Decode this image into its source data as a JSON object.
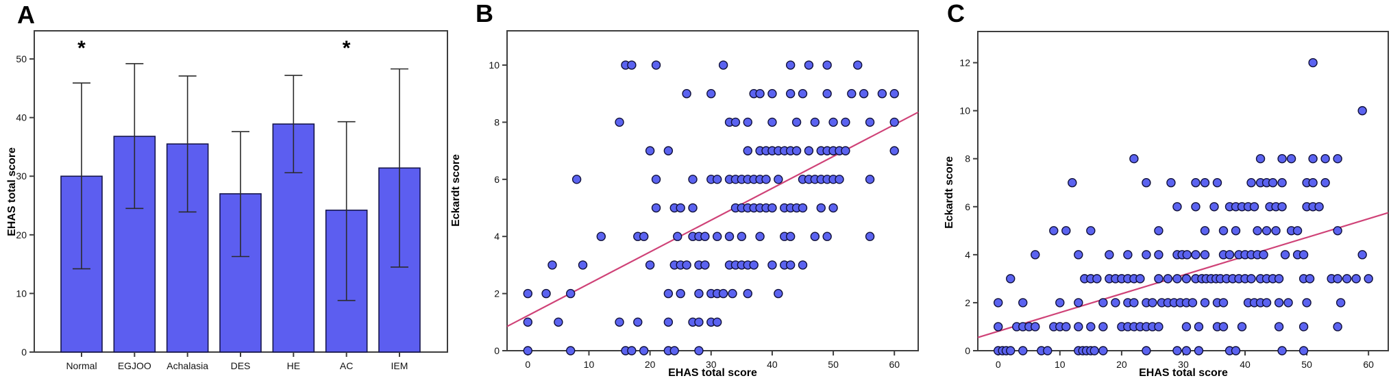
{
  "panels": {
    "a": {
      "letter": "A"
    },
    "b": {
      "letter": "B"
    },
    "c": {
      "letter": "C"
    }
  },
  "colors": {
    "bar_fill": "#5c5ef0",
    "bar_border": "#15154a",
    "point_fill": "#5b63f0",
    "point_border": "#10103a",
    "fit_line": "#cf4277",
    "frame": "#3d3d3d",
    "error_bar": "#2a2a2a",
    "tick_text": "#111111"
  },
  "chart_data": [
    {
      "type": "bar",
      "panel": "A",
      "title": "",
      "xlabel": "",
      "ylabel": "EHAS total score",
      "categories": [
        "Normal",
        "EGJOO",
        "Achalasia",
        "DES",
        "HE",
        "AC",
        "IEM"
      ],
      "values": [
        30,
        36.8,
        35.5,
        27,
        38.9,
        24.2,
        31.4
      ],
      "error_low": [
        14.2,
        24.5,
        23.9,
        16.3,
        30.6,
        8.8,
        14.5
      ],
      "error_high": [
        45.9,
        49.2,
        47.1,
        37.6,
        47.2,
        39.3,
        48.3
      ],
      "yticks": [
        0,
        10,
        20,
        30,
        40,
        50
      ],
      "ylim": [
        0,
        54.8
      ],
      "grid": false,
      "annotations": [
        {
          "category": "Normal",
          "symbol": "*"
        },
        {
          "category": "AC",
          "symbol": "*"
        }
      ]
    },
    {
      "type": "scatter",
      "panel": "B",
      "title": "",
      "xlabel": "EHAS total score",
      "ylabel": "Eckardt score",
      "xticks": [
        0,
        10,
        20,
        30,
        40,
        50,
        60
      ],
      "yticks": [
        0,
        2,
        4,
        6,
        8,
        10
      ],
      "xlim": [
        -3.4,
        63.9
      ],
      "ylim": [
        0,
        11.2
      ],
      "grid": false,
      "fit_line": {
        "x1": -3.4,
        "y1": 0.85,
        "x2": 63.9,
        "y2": 8.35
      },
      "points": [
        [
          0,
          0
        ],
        [
          7,
          0
        ],
        [
          16,
          0
        ],
        [
          17,
          0
        ],
        [
          19,
          0
        ],
        [
          23,
          0
        ],
        [
          24,
          0
        ],
        [
          28,
          0
        ],
        [
          0,
          1
        ],
        [
          5,
          1
        ],
        [
          15,
          1
        ],
        [
          18,
          1
        ],
        [
          23,
          1
        ],
        [
          27,
          1
        ],
        [
          28,
          1
        ],
        [
          30,
          1
        ],
        [
          31,
          1
        ],
        [
          0,
          2
        ],
        [
          3,
          2
        ],
        [
          7,
          2
        ],
        [
          23,
          2
        ],
        [
          25,
          2
        ],
        [
          28,
          2
        ],
        [
          30,
          2
        ],
        [
          31,
          2
        ],
        [
          32,
          2
        ],
        [
          33.5,
          2
        ],
        [
          36,
          2
        ],
        [
          41,
          2
        ],
        [
          4,
          3
        ],
        [
          9,
          3
        ],
        [
          20,
          3
        ],
        [
          24,
          3
        ],
        [
          25,
          3
        ],
        [
          26,
          3
        ],
        [
          28,
          3
        ],
        [
          29,
          3
        ],
        [
          33,
          3
        ],
        [
          34,
          3
        ],
        [
          35,
          3
        ],
        [
          36,
          3
        ],
        [
          37,
          3
        ],
        [
          40,
          3
        ],
        [
          42,
          3
        ],
        [
          43,
          3
        ],
        [
          45,
          3
        ],
        [
          12,
          4
        ],
        [
          18,
          4
        ],
        [
          19,
          4
        ],
        [
          24.5,
          4
        ],
        [
          27,
          4
        ],
        [
          28,
          4
        ],
        [
          29,
          4
        ],
        [
          31,
          4
        ],
        [
          33,
          4
        ],
        [
          35,
          4
        ],
        [
          38,
          4
        ],
        [
          42,
          4
        ],
        [
          43,
          4
        ],
        [
          47,
          4
        ],
        [
          49,
          4
        ],
        [
          56,
          4
        ],
        [
          21,
          5
        ],
        [
          24,
          5
        ],
        [
          25,
          5
        ],
        [
          27,
          5
        ],
        [
          34,
          5
        ],
        [
          35,
          5
        ],
        [
          36,
          5
        ],
        [
          37,
          5
        ],
        [
          38,
          5
        ],
        [
          39,
          5
        ],
        [
          40,
          5
        ],
        [
          42,
          5
        ],
        [
          43,
          5
        ],
        [
          44,
          5
        ],
        [
          45,
          5
        ],
        [
          48,
          5
        ],
        [
          50,
          5
        ],
        [
          8,
          6
        ],
        [
          21,
          6
        ],
        [
          27,
          6
        ],
        [
          30,
          6
        ],
        [
          31,
          6
        ],
        [
          33,
          6
        ],
        [
          34,
          6
        ],
        [
          35,
          6
        ],
        [
          36,
          6
        ],
        [
          37,
          6
        ],
        [
          38,
          6
        ],
        [
          39,
          6
        ],
        [
          41,
          6
        ],
        [
          45,
          6
        ],
        [
          46,
          6
        ],
        [
          47,
          6
        ],
        [
          48,
          6
        ],
        [
          49,
          6
        ],
        [
          50,
          6
        ],
        [
          51,
          6
        ],
        [
          56,
          6
        ],
        [
          20,
          7
        ],
        [
          23,
          7
        ],
        [
          36,
          7
        ],
        [
          38,
          7
        ],
        [
          39,
          7
        ],
        [
          40,
          7
        ],
        [
          41,
          7
        ],
        [
          42,
          7
        ],
        [
          43,
          7
        ],
        [
          44,
          7
        ],
        [
          46,
          7
        ],
        [
          48,
          7
        ],
        [
          49,
          7
        ],
        [
          50,
          7
        ],
        [
          51,
          7
        ],
        [
          52,
          7
        ],
        [
          60,
          7
        ],
        [
          15,
          8
        ],
        [
          33,
          8
        ],
        [
          34,
          8
        ],
        [
          36,
          8
        ],
        [
          40,
          8
        ],
        [
          44,
          8
        ],
        [
          47,
          8
        ],
        [
          50,
          8
        ],
        [
          52,
          8
        ],
        [
          56,
          8
        ],
        [
          60,
          8
        ],
        [
          26,
          9
        ],
        [
          30,
          9
        ],
        [
          37,
          9
        ],
        [
          38,
          9
        ],
        [
          40,
          9
        ],
        [
          43,
          9
        ],
        [
          45,
          9
        ],
        [
          49,
          9
        ],
        [
          53,
          9
        ],
        [
          55,
          9
        ],
        [
          58,
          9
        ],
        [
          60,
          9
        ],
        [
          16,
          10
        ],
        [
          17,
          10
        ],
        [
          21,
          10
        ],
        [
          32,
          10
        ],
        [
          43,
          10
        ],
        [
          46,
          10
        ],
        [
          49,
          10
        ],
        [
          54,
          10
        ]
      ]
    },
    {
      "type": "scatter",
      "panel": "C",
      "title": "",
      "xlabel": "EHAS total score",
      "ylabel": "Eckardt score",
      "xticks": [
        0,
        10,
        20,
        30,
        40,
        50,
        60
      ],
      "yticks": [
        0,
        2,
        4,
        6,
        8,
        10,
        12
      ],
      "xlim": [
        -3.3,
        63.2
      ],
      "ylim": [
        0,
        13.3
      ],
      "grid": false,
      "fit_line": {
        "x1": -3.3,
        "y1": 0.55,
        "x2": 63.2,
        "y2": 5.75
      },
      "points": [
        [
          0,
          0
        ],
        [
          0.7,
          0
        ],
        [
          1.3,
          0
        ],
        [
          2,
          0
        ],
        [
          4,
          0
        ],
        [
          7,
          0
        ],
        [
          8,
          0
        ],
        [
          13,
          0
        ],
        [
          13.7,
          0
        ],
        [
          14.3,
          0
        ],
        [
          15,
          0
        ],
        [
          15.6,
          0
        ],
        [
          17,
          0
        ],
        [
          24,
          0
        ],
        [
          29,
          0
        ],
        [
          30.5,
          0
        ],
        [
          32.5,
          0
        ],
        [
          37.5,
          0
        ],
        [
          38.5,
          0
        ],
        [
          46,
          0
        ],
        [
          49.5,
          0
        ],
        [
          0,
          1
        ],
        [
          3,
          1
        ],
        [
          4,
          1
        ],
        [
          5,
          1
        ],
        [
          6,
          1
        ],
        [
          9,
          1
        ],
        [
          10,
          1
        ],
        [
          11,
          1
        ],
        [
          13,
          1
        ],
        [
          15,
          1
        ],
        [
          17,
          1
        ],
        [
          20,
          1
        ],
        [
          21,
          1
        ],
        [
          22,
          1
        ],
        [
          23,
          1
        ],
        [
          24,
          1
        ],
        [
          25,
          1
        ],
        [
          26,
          1
        ],
        [
          30.5,
          1
        ],
        [
          32.5,
          1
        ],
        [
          35.5,
          1
        ],
        [
          36.5,
          1
        ],
        [
          39.5,
          1
        ],
        [
          45.5,
          1
        ],
        [
          49.5,
          1
        ],
        [
          55,
          1
        ],
        [
          0,
          2
        ],
        [
          4,
          2
        ],
        [
          10,
          2
        ],
        [
          13,
          2
        ],
        [
          17,
          2
        ],
        [
          19,
          2
        ],
        [
          21,
          2
        ],
        [
          22,
          2
        ],
        [
          24,
          2
        ],
        [
          25,
          2
        ],
        [
          26.5,
          2
        ],
        [
          27.5,
          2
        ],
        [
          28.5,
          2
        ],
        [
          29.5,
          2
        ],
        [
          30.5,
          2
        ],
        [
          31.5,
          2
        ],
        [
          33.5,
          2
        ],
        [
          35.5,
          2
        ],
        [
          36.5,
          2
        ],
        [
          40.5,
          2
        ],
        [
          41.5,
          2
        ],
        [
          42.5,
          2
        ],
        [
          43.5,
          2
        ],
        [
          45.5,
          2
        ],
        [
          47,
          2
        ],
        [
          50,
          2
        ],
        [
          55.5,
          2
        ],
        [
          2,
          3
        ],
        [
          14,
          3
        ],
        [
          15,
          3
        ],
        [
          16,
          3
        ],
        [
          18,
          3
        ],
        [
          19,
          3
        ],
        [
          20,
          3
        ],
        [
          21,
          3
        ],
        [
          22,
          3
        ],
        [
          23,
          3
        ],
        [
          26,
          3
        ],
        [
          27.5,
          3
        ],
        [
          29,
          3
        ],
        [
          30.5,
          3
        ],
        [
          32,
          3
        ],
        [
          33,
          3
        ],
        [
          33.7,
          3
        ],
        [
          34.5,
          3
        ],
        [
          35.3,
          3
        ],
        [
          36,
          3
        ],
        [
          37,
          3
        ],
        [
          38,
          3
        ],
        [
          39,
          3
        ],
        [
          40,
          3
        ],
        [
          41,
          3
        ],
        [
          42.5,
          3
        ],
        [
          43.5,
          3
        ],
        [
          44.5,
          3
        ],
        [
          45.5,
          3
        ],
        [
          49.5,
          3
        ],
        [
          50.5,
          3
        ],
        [
          54,
          3
        ],
        [
          55,
          3
        ],
        [
          56.5,
          3
        ],
        [
          58,
          3
        ],
        [
          60,
          3
        ],
        [
          6,
          4
        ],
        [
          13,
          4
        ],
        [
          18,
          4
        ],
        [
          21,
          4
        ],
        [
          24,
          4
        ],
        [
          26,
          4
        ],
        [
          29,
          4
        ],
        [
          29.8,
          4
        ],
        [
          30.6,
          4
        ],
        [
          32,
          4
        ],
        [
          33.5,
          4
        ],
        [
          36.5,
          4
        ],
        [
          37.5,
          4
        ],
        [
          39,
          4
        ],
        [
          40,
          4
        ],
        [
          41,
          4
        ],
        [
          42,
          4
        ],
        [
          43,
          4
        ],
        [
          46.5,
          4
        ],
        [
          48.5,
          4
        ],
        [
          49.5,
          4
        ],
        [
          59,
          4
        ],
        [
          9,
          5
        ],
        [
          11,
          5
        ],
        [
          15,
          5
        ],
        [
          26,
          5
        ],
        [
          33.5,
          5
        ],
        [
          36.5,
          5
        ],
        [
          38.5,
          5
        ],
        [
          42,
          5
        ],
        [
          43.5,
          5
        ],
        [
          45,
          5
        ],
        [
          47.5,
          5
        ],
        [
          48.5,
          5
        ],
        [
          55,
          5
        ],
        [
          29,
          6
        ],
        [
          32,
          6
        ],
        [
          35,
          6
        ],
        [
          37.5,
          6
        ],
        [
          38.5,
          6
        ],
        [
          39.5,
          6
        ],
        [
          40.5,
          6
        ],
        [
          41.5,
          6
        ],
        [
          44,
          6
        ],
        [
          45,
          6
        ],
        [
          46,
          6
        ],
        [
          50,
          6
        ],
        [
          51,
          6
        ],
        [
          52,
          6
        ],
        [
          12,
          7
        ],
        [
          24,
          7
        ],
        [
          28,
          7
        ],
        [
          32,
          7
        ],
        [
          33.5,
          7
        ],
        [
          35.5,
          7
        ],
        [
          41,
          7
        ],
        [
          42.5,
          7
        ],
        [
          43.5,
          7
        ],
        [
          44.5,
          7
        ],
        [
          46,
          7
        ],
        [
          50,
          7
        ],
        [
          51,
          7
        ],
        [
          53,
          7
        ],
        [
          22,
          8
        ],
        [
          42.5,
          8
        ],
        [
          46,
          8
        ],
        [
          47.5,
          8
        ],
        [
          51,
          8
        ],
        [
          53,
          8
        ],
        [
          55,
          8
        ],
        [
          59,
          10
        ],
        [
          51,
          12
        ]
      ]
    }
  ]
}
